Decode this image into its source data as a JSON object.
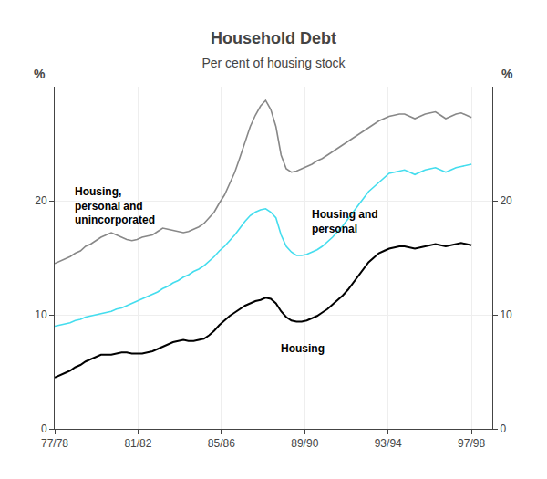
{
  "chart_data": {
    "type": "line",
    "title": "Household Debt",
    "subtitle": "Per cent of housing stock",
    "ylabel": "%",
    "y2label": "%",
    "x": [
      0,
      0.988,
      1.975,
      2.963,
      3.951,
      4.938,
      5.926,
      6.914,
      7.901,
      8.889,
      9.877,
      10.864,
      11.852,
      12.84,
      13.827,
      14.815,
      15.802,
      16.79,
      17.778,
      18.765,
      19.753,
      20.741,
      21.728,
      22.716,
      23.704,
      24.691,
      25.679,
      26.667,
      27.654,
      28.642,
      29.63,
      30.617,
      31.605,
      32.593,
      33.58,
      34.568,
      35.556,
      36.543,
      37.531,
      38.519,
      39.506,
      40.494,
      41.481,
      42.469,
      43.457,
      44.444,
      45.432,
      46.42,
      47.407,
      48.395,
      49.383,
      50.37,
      51.358,
      52.346,
      53.333,
      54.321,
      55.309,
      56.296,
      57.284,
      58.272,
      59.259,
      60.247,
      61.235,
      62.222,
      63.21,
      64.198,
      65.185,
      66.173,
      67.16,
      68.148,
      69.136,
      70.123,
      71.111,
      72.099,
      73.086,
      74.074,
      75.062,
      76.049,
      77.037,
      78.025,
      79.012,
      80
    ],
    "xlim": [
      0,
      84
    ],
    "xticks": [
      {
        "value": 0,
        "label": "77/78"
      },
      {
        "value": 16,
        "label": "81/82"
      },
      {
        "value": 32,
        "label": "85/86"
      },
      {
        "value": 48,
        "label": "89/90"
      },
      {
        "value": 64,
        "label": "93/94"
      },
      {
        "value": 80,
        "label": "97/98"
      }
    ],
    "ylim": [
      0,
      30
    ],
    "yticks": [
      0,
      10,
      20
    ],
    "y2lim": [
      0,
      30
    ],
    "y2ticks": [
      0,
      10,
      20
    ],
    "grid": true,
    "series": [
      {
        "name": "Housing,\npersonal and\nunincorporated",
        "color": "#888888",
        "values": [
          14.5,
          14.7,
          14.9,
          15.1,
          15.4,
          15.6,
          16.0,
          16.2,
          16.5,
          16.8,
          17.0,
          17.2,
          17.0,
          16.8,
          16.6,
          16.5,
          16.6,
          16.8,
          16.9,
          17.0,
          17.3,
          17.6,
          17.5,
          17.4,
          17.3,
          17.2,
          17.3,
          17.5,
          17.7,
          18.0,
          18.5,
          19.0,
          19.8,
          20.5,
          21.5,
          22.5,
          23.8,
          25.2,
          26.5,
          27.5,
          28.3,
          28.8,
          28.0,
          26.5,
          24.0,
          22.8,
          22.5,
          22.6,
          22.8,
          23.0,
          23.2,
          23.5,
          23.7,
          24.0,
          24.3,
          24.6,
          24.9,
          25.2,
          25.5,
          25.8,
          26.1,
          26.4,
          26.7,
          27.0,
          27.2,
          27.4,
          27.5,
          27.6,
          27.6,
          27.4,
          27.2,
          27.4,
          27.6,
          27.7,
          27.8,
          27.5,
          27.2,
          27.4,
          27.6,
          27.7,
          27.5,
          27.3
        ]
      },
      {
        "name": "Housing and\npersonal",
        "color": "#44ddee",
        "values": [
          9.0,
          9.1,
          9.2,
          9.3,
          9.5,
          9.6,
          9.8,
          9.9,
          10.0,
          10.1,
          10.2,
          10.3,
          10.5,
          10.6,
          10.8,
          11.0,
          11.2,
          11.4,
          11.6,
          11.8,
          12.0,
          12.3,
          12.5,
          12.8,
          13.0,
          13.3,
          13.5,
          13.8,
          14.0,
          14.3,
          14.7,
          15.1,
          15.6,
          16.0,
          16.5,
          17.0,
          17.6,
          18.2,
          18.7,
          19.0,
          19.2,
          19.3,
          19.0,
          18.5,
          17.0,
          16.0,
          15.5,
          15.2,
          15.2,
          15.3,
          15.5,
          15.7,
          16.0,
          16.4,
          16.8,
          17.3,
          17.8,
          18.4,
          19.0,
          19.6,
          20.2,
          20.8,
          21.2,
          21.6,
          22.0,
          22.4,
          22.5,
          22.6,
          22.7,
          22.5,
          22.3,
          22.5,
          22.7,
          22.8,
          22.9,
          22.7,
          22.5,
          22.7,
          22.9,
          23.0,
          23.1,
          23.2
        ]
      },
      {
        "name": "Housing",
        "color": "#000000",
        "values": [
          4.5,
          4.7,
          4.9,
          5.1,
          5.4,
          5.6,
          5.9,
          6.1,
          6.3,
          6.5,
          6.5,
          6.5,
          6.6,
          6.7,
          6.7,
          6.6,
          6.6,
          6.6,
          6.7,
          6.8,
          7.0,
          7.2,
          7.4,
          7.6,
          7.7,
          7.8,
          7.7,
          7.7,
          7.8,
          7.9,
          8.2,
          8.6,
          9.1,
          9.5,
          9.9,
          10.2,
          10.5,
          10.8,
          11.0,
          11.2,
          11.3,
          11.5,
          11.4,
          11.0,
          10.3,
          9.8,
          9.5,
          9.4,
          9.4,
          9.5,
          9.7,
          9.9,
          10.2,
          10.5,
          10.9,
          11.3,
          11.7,
          12.2,
          12.8,
          13.4,
          14.0,
          14.6,
          15.0,
          15.4,
          15.6,
          15.8,
          15.9,
          16.0,
          16.0,
          15.9,
          15.8,
          15.9,
          16.0,
          16.1,
          16.2,
          16.1,
          16.0,
          16.1,
          16.2,
          16.3,
          16.2,
          16.1
        ]
      }
    ]
  }
}
